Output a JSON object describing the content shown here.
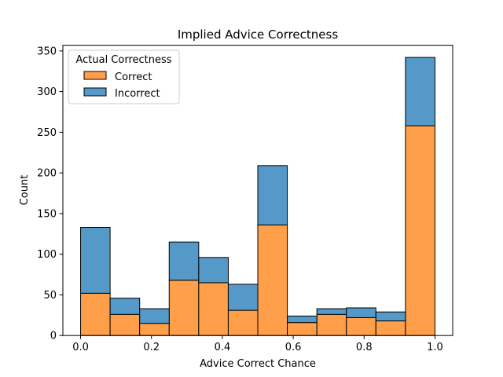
{
  "chart_data": {
    "type": "bar",
    "title": "Implied Advice Correctness",
    "xlabel": "Advice Correct Chance",
    "ylabel": "Count",
    "xlim": [
      -0.05,
      1.05
    ],
    "ylim": [
      0,
      357
    ],
    "x_ticks": [
      "0.0",
      "0.2",
      "0.4",
      "0.6",
      "0.8",
      "1.0"
    ],
    "x_tick_values": [
      0.0,
      0.2,
      0.4,
      0.6,
      0.8,
      1.0
    ],
    "y_ticks": [
      "0",
      "50",
      "100",
      "150",
      "200",
      "250",
      "300",
      "350"
    ],
    "y_tick_values": [
      0,
      50,
      100,
      150,
      200,
      250,
      300,
      350
    ],
    "bin_edges": [
      0.0,
      0.0833,
      0.1667,
      0.25,
      0.3333,
      0.4167,
      0.5,
      0.5833,
      0.6667,
      0.75,
      0.8333,
      0.9167,
      1.0
    ],
    "stacked": true,
    "legend": {
      "title": "Actual Correctness",
      "placement": "top-left"
    },
    "series": [
      {
        "name": "Correct",
        "color": "#ff9f4a",
        "values": [
          52,
          26,
          15,
          68,
          65,
          31,
          136,
          16,
          26,
          22,
          18,
          258
        ]
      },
      {
        "name": "Incorrect",
        "color": "#5599c8",
        "values": [
          81,
          20,
          18,
          47,
          31,
          32,
          73,
          8,
          7,
          12,
          11,
          84
        ]
      }
    ],
    "grid": false
  }
}
